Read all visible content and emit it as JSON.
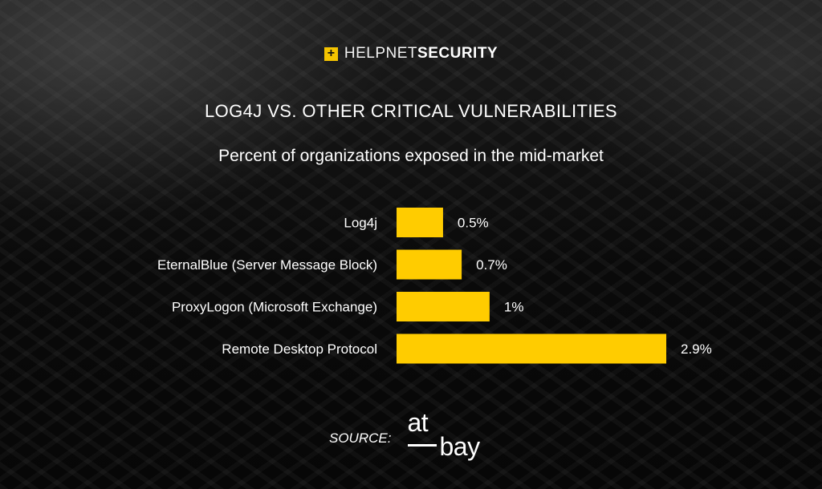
{
  "brand": {
    "mark": "+",
    "name_light": "HELPNET",
    "name_bold": "SECURITY"
  },
  "title": "LOG4J VS. OTHER CRITICAL VULNERABILITIES",
  "subtitle": "Percent of organizations exposed in the mid-market",
  "chart_data": {
    "type": "bar",
    "orientation": "horizontal",
    "categories": [
      "Log4j",
      "EternalBlue (Server Message Block)",
      "ProxyLogon (Microsoft Exchange)",
      "Remote Desktop Protocol"
    ],
    "values": [
      0.5,
      0.7,
      1,
      2.9
    ],
    "value_labels": [
      "0.5%",
      "0.7%",
      "1%",
      "2.9%"
    ],
    "bar_color": "#ffcc00",
    "xlim": [
      0,
      2.9
    ],
    "grid": false,
    "legend": "none"
  },
  "source": {
    "label": "SOURCE:",
    "logo_top": "at",
    "logo_bottom": "bay"
  },
  "colors": {
    "accent": "#ffcc00",
    "background": "#0c0c0c",
    "text": "#ffffff"
  }
}
